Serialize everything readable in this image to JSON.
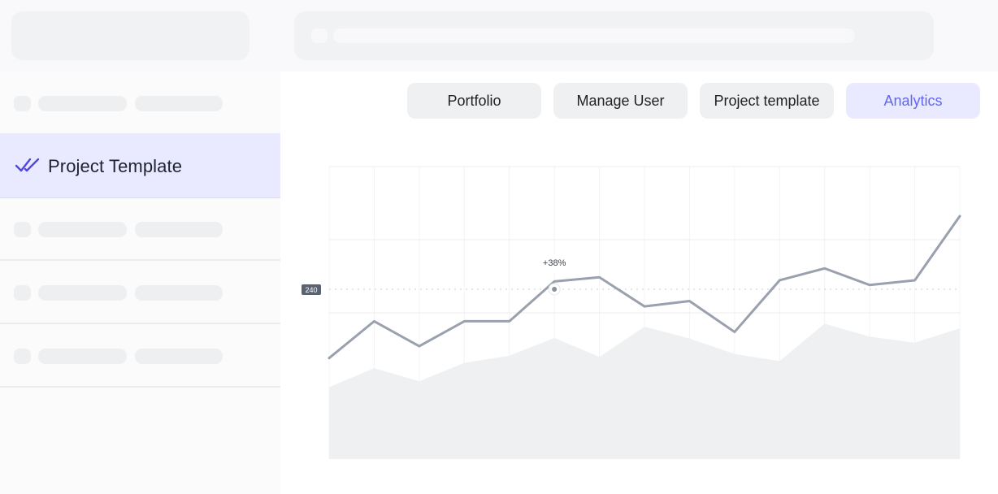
{
  "sidebar": {
    "active_item": {
      "label": "Project Template",
      "icon": "double-check-icon",
      "icon_color": "#4f46e5"
    }
  },
  "tabs": [
    {
      "label": "Portfolio",
      "active": false
    },
    {
      "label": "Manage User",
      "active": false
    },
    {
      "label": "Project template",
      "active": false
    },
    {
      "label": "Analytics",
      "active": true
    }
  ],
  "colors": {
    "accent": "#6366f1",
    "accent_bg": "#e9eaff",
    "line": "#9aa1ae",
    "area": "#eff0f2"
  },
  "chart_data": {
    "type": "line",
    "series_line": [
      170,
      232,
      190,
      232,
      232,
      299,
      306,
      257,
      266,
      214,
      301,
      321,
      293,
      301,
      409
    ],
    "series_area": [
      121,
      153,
      131,
      162,
      174,
      204,
      172,
      223,
      203,
      177,
      165,
      228,
      206,
      196,
      220
    ],
    "marker": {
      "index": 5,
      "value": 240,
      "label": "+38%",
      "y_label": "240"
    },
    "ylim": [
      0,
      409
    ],
    "grid": true
  }
}
